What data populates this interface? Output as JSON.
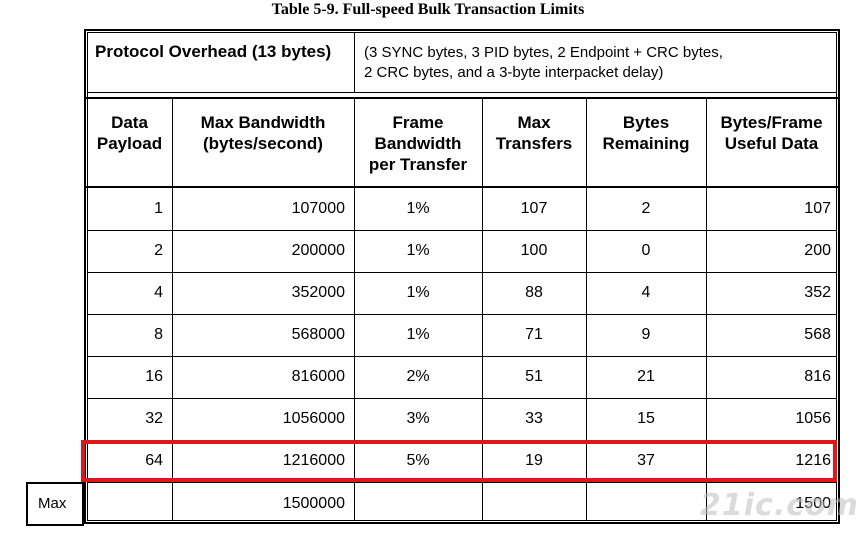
{
  "caption": "Table 5-9.  Full-speed Bulk Transaction Limits",
  "overhead": {
    "label": "Protocol Overhead (13 bytes)",
    "detail_line1": "(3 SYNC bytes, 3 PID bytes, 2 Endpoint + CRC bytes,",
    "detail_line2": "2 CRC bytes, and a 3-byte interpacket delay)"
  },
  "headers": {
    "data_payload": [
      "Data",
      "Payload"
    ],
    "max_bandwidth": [
      "Max Bandwidth",
      "(bytes/second)"
    ],
    "frame_bandwidth": [
      "Frame",
      "Bandwidth",
      "per Transfer"
    ],
    "max_transfers": [
      "Max",
      "Transfers"
    ],
    "bytes_remaining": [
      "Bytes",
      "Remaining"
    ],
    "bytes_frame": [
      "Bytes/Frame",
      "Useful Data"
    ]
  },
  "rows": [
    {
      "payload": "1",
      "bandwidth": "107000",
      "frame_bw": "1%",
      "transfers": "107",
      "remaining": "2",
      "useful": "107"
    },
    {
      "payload": "2",
      "bandwidth": "200000",
      "frame_bw": "1%",
      "transfers": "100",
      "remaining": "0",
      "useful": "200"
    },
    {
      "payload": "4",
      "bandwidth": "352000",
      "frame_bw": "1%",
      "transfers": "88",
      "remaining": "4",
      "useful": "352"
    },
    {
      "payload": "8",
      "bandwidth": "568000",
      "frame_bw": "1%",
      "transfers": "71",
      "remaining": "9",
      "useful": "568"
    },
    {
      "payload": "16",
      "bandwidth": "816000",
      "frame_bw": "2%",
      "transfers": "51",
      "remaining": "21",
      "useful": "816"
    },
    {
      "payload": "32",
      "bandwidth": "1056000",
      "frame_bw": "3%",
      "transfers": "33",
      "remaining": "15",
      "useful": "1056"
    },
    {
      "payload": "64",
      "bandwidth": "1216000",
      "frame_bw": "5%",
      "transfers": "19",
      "remaining": "37",
      "useful": "1216"
    }
  ],
  "max_row": {
    "label": "Max",
    "bandwidth": "1500000",
    "useful": "1500"
  },
  "highlight_color": "#e0161c",
  "watermark": "21ic.com"
}
